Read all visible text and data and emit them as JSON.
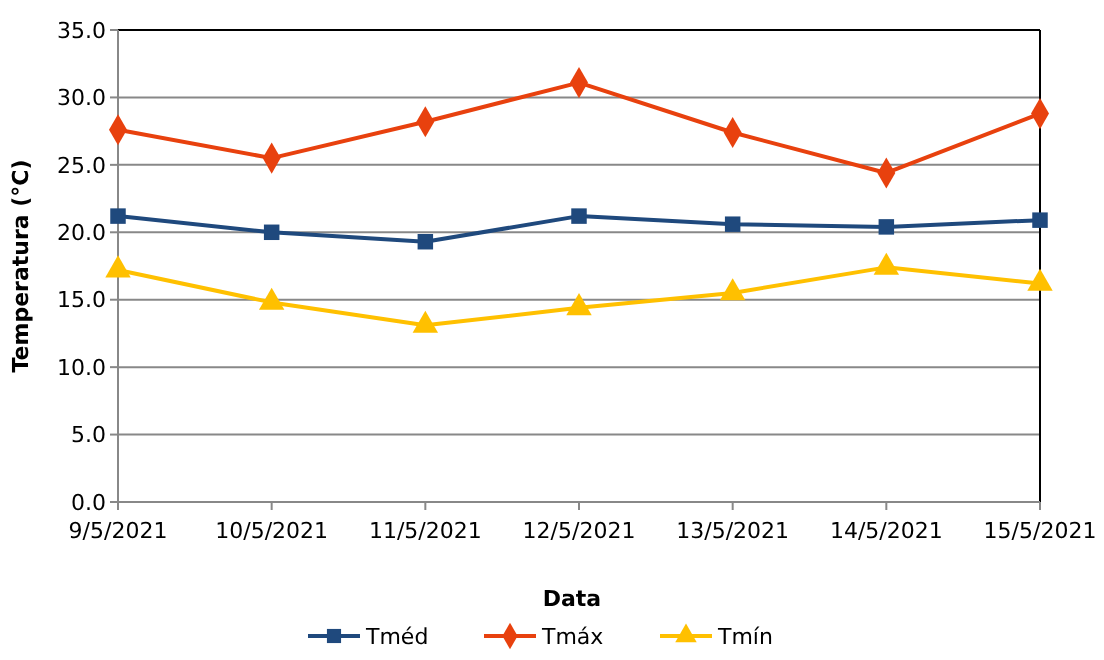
{
  "chart_data": {
    "type": "line",
    "xlabel": "Data",
    "ylabel": "Temperatura (°C)",
    "categories": [
      "9/5/2021",
      "10/5/2021",
      "11/5/2021",
      "12/5/2021",
      "13/5/2021",
      "14/5/2021",
      "15/5/2021"
    ],
    "series": [
      {
        "name": "Tméd",
        "color": "#1f497d",
        "marker": "square",
        "values": [
          21.2,
          20.0,
          19.3,
          21.2,
          20.6,
          20.4,
          20.9
        ]
      },
      {
        "name": "Tmáx",
        "color": "#e8410e",
        "marker": "diamond",
        "values": [
          27.6,
          25.5,
          28.2,
          31.1,
          27.4,
          24.4,
          28.8
        ]
      },
      {
        "name": "Tmín",
        "color": "#ffc000",
        "marker": "triangle",
        "values": [
          17.2,
          14.8,
          13.1,
          14.4,
          15.5,
          17.4,
          16.2
        ]
      }
    ],
    "ylim": [
      0,
      35
    ],
    "yticks": [
      {
        "value": 0,
        "label": "0.0"
      },
      {
        "value": 5,
        "label": "5.0"
      },
      {
        "value": 10,
        "label": "10.0"
      },
      {
        "value": 15,
        "label": "15.0"
      },
      {
        "value": 20,
        "label": "20.0"
      },
      {
        "value": 25,
        "label": "25.0"
      },
      {
        "value": 30,
        "label": "30.0"
      },
      {
        "value": 35,
        "label": "35.0"
      }
    ],
    "grid": "y",
    "legend": "bottom"
  }
}
